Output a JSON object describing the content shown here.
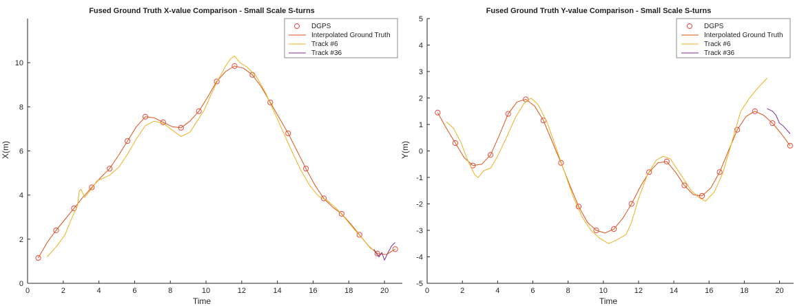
{
  "chart_data": [
    {
      "type": "line",
      "title": "Fused Ground Truth X-value Comparison - Small Scale S-turns",
      "xlabel": "Time",
      "ylabel": "X(m)",
      "xlim": [
        0,
        21
      ],
      "ylim": [
        0,
        12
      ],
      "xticks": [
        0,
        2,
        4,
        6,
        8,
        10,
        12,
        14,
        16,
        18,
        20
      ],
      "yticks": [
        0,
        2,
        4,
        6,
        8,
        10
      ],
      "grid": false,
      "legend_position": "top-right",
      "legend": [
        "DGPS",
        "Interpolated Ground Truth",
        "Track #6",
        "Track #36"
      ],
      "series": [
        {
          "name": "DGPS",
          "style": "markers",
          "color": "#e8473c",
          "x": [
            0.6,
            1.6,
            2.6,
            3.6,
            4.6,
            5.6,
            6.6,
            7.6,
            8.6,
            9.6,
            10.6,
            11.6,
            12.6,
            13.6,
            14.6,
            15.6,
            16.6,
            17.6,
            18.6,
            19.6,
            20.6
          ],
          "y": [
            1.15,
            2.4,
            3.4,
            4.35,
            5.2,
            6.45,
            7.55,
            7.3,
            7.05,
            7.8,
            9.15,
            9.85,
            9.45,
            8.2,
            6.8,
            5.2,
            3.85,
            3.15,
            2.2,
            1.35,
            1.55
          ]
        },
        {
          "name": "Interpolated Ground Truth",
          "style": "line",
          "color": "#d95319",
          "x": [
            0.6,
            1.1,
            1.6,
            2.1,
            2.6,
            3.1,
            3.6,
            4.1,
            4.6,
            5.1,
            5.6,
            6.1,
            6.6,
            7.1,
            7.6,
            8.1,
            8.6,
            9.1,
            9.6,
            10.1,
            10.6,
            11.1,
            11.6,
            12.1,
            12.6,
            13.1,
            13.6,
            14.1,
            14.6,
            15.1,
            15.6,
            16.1,
            16.6,
            17.1,
            17.6,
            18.1,
            18.6,
            19.1,
            19.6,
            20.1,
            20.6
          ],
          "y": [
            1.15,
            1.85,
            2.4,
            2.9,
            3.4,
            3.9,
            4.35,
            4.8,
            5.2,
            5.8,
            6.45,
            7.1,
            7.55,
            7.5,
            7.3,
            7.1,
            7.05,
            7.35,
            7.8,
            8.45,
            9.15,
            9.6,
            9.85,
            9.75,
            9.45,
            8.9,
            8.2,
            7.5,
            6.8,
            6.0,
            5.2,
            4.45,
            3.85,
            3.45,
            3.15,
            2.7,
            2.2,
            1.7,
            1.35,
            1.3,
            1.55
          ]
        },
        {
          "name": "Track #6",
          "style": "line",
          "color": "#edb120",
          "x": [
            1.1,
            1.6,
            2.1,
            2.5,
            2.8,
            2.9,
            3.0,
            3.2,
            3.6,
            3.9,
            4.2,
            4.6,
            5.1,
            5.6,
            6.1,
            6.6,
            7.1,
            7.6,
            8.1,
            8.6,
            9.1,
            9.5,
            9.9,
            10.2,
            10.6,
            11.1,
            11.4,
            11.6,
            11.9,
            12.3,
            12.8,
            13.3,
            13.8,
            14.3,
            14.8,
            15.3,
            15.8,
            16.3,
            16.8,
            17.3,
            17.8,
            18.3,
            18.8,
            19.2,
            19.6
          ],
          "y": [
            1.2,
            1.65,
            2.2,
            3.0,
            3.5,
            4.2,
            4.25,
            3.9,
            4.3,
            4.65,
            4.75,
            4.9,
            5.25,
            5.85,
            6.55,
            7.15,
            7.35,
            7.25,
            6.95,
            6.65,
            6.85,
            7.35,
            7.85,
            8.4,
            9.1,
            9.85,
            10.2,
            10.3,
            10.0,
            9.8,
            9.4,
            8.7,
            7.8,
            6.9,
            6.0,
            5.15,
            4.45,
            3.95,
            3.75,
            3.4,
            2.95,
            2.45,
            2.0,
            1.6,
            1.4
          ]
        },
        {
          "name": "Track #36",
          "style": "line",
          "color": "#7e2f8e",
          "x": [
            19.4,
            19.55,
            19.7,
            19.85,
            20.0,
            20.2,
            20.4,
            20.6
          ],
          "y": [
            1.55,
            1.35,
            1.2,
            1.4,
            1.05,
            1.4,
            1.7,
            1.85
          ]
        }
      ]
    },
    {
      "type": "line",
      "title": "Fused Ground Truth Y-value Comparison - Small Scale S-turns",
      "xlabel": "Time",
      "ylabel": "Y(m)",
      "xlim": [
        0,
        20.8
      ],
      "ylim": [
        -5,
        5
      ],
      "xticks": [
        0,
        2,
        4,
        6,
        8,
        10,
        12,
        14,
        16,
        18,
        20
      ],
      "yticks": [
        -5,
        -4,
        -3,
        -2,
        -1,
        0,
        1,
        2,
        3,
        4,
        5
      ],
      "grid": false,
      "legend_position": "top-right",
      "legend": [
        "DGPS",
        "Interpolated Ground Truth",
        "Track #6",
        "Track #36"
      ],
      "series": [
        {
          "name": "DGPS",
          "style": "markers",
          "color": "#e8473c",
          "x": [
            0.6,
            1.6,
            2.6,
            3.6,
            4.6,
            5.6,
            6.6,
            7.6,
            8.6,
            9.6,
            10.6,
            11.6,
            12.6,
            13.6,
            14.6,
            15.6,
            16.6,
            17.6,
            18.6,
            19.6,
            20.6
          ],
          "y": [
            1.45,
            0.3,
            -0.55,
            -0.15,
            1.4,
            1.95,
            1.15,
            -0.45,
            -2.1,
            -3.0,
            -2.95,
            -2.0,
            -0.8,
            -0.4,
            -1.3,
            -1.7,
            -0.8,
            0.8,
            1.5,
            1.05,
            0.2
          ]
        },
        {
          "name": "Interpolated Ground Truth",
          "style": "line",
          "color": "#d95319",
          "x": [
            0.6,
            1.1,
            1.6,
            2.1,
            2.6,
            3.1,
            3.6,
            4.1,
            4.6,
            5.1,
            5.6,
            6.1,
            6.6,
            7.1,
            7.6,
            8.1,
            8.6,
            9.1,
            9.6,
            10.1,
            10.6,
            11.1,
            11.6,
            12.1,
            12.6,
            13.1,
            13.6,
            14.1,
            14.6,
            15.1,
            15.6,
            16.1,
            16.6,
            17.1,
            17.6,
            18.1,
            18.6,
            19.1,
            19.6,
            20.1,
            20.6
          ],
          "y": [
            1.45,
            0.85,
            0.3,
            -0.25,
            -0.55,
            -0.5,
            -0.15,
            0.6,
            1.4,
            1.85,
            1.95,
            1.7,
            1.15,
            0.35,
            -0.45,
            -1.3,
            -2.1,
            -2.7,
            -3.0,
            -3.1,
            -2.95,
            -2.55,
            -2.0,
            -1.35,
            -0.8,
            -0.45,
            -0.4,
            -0.8,
            -1.3,
            -1.65,
            -1.7,
            -1.4,
            -0.8,
            0.0,
            0.8,
            1.3,
            1.5,
            1.35,
            1.05,
            0.65,
            0.2
          ]
        },
        {
          "name": "Track #6",
          "style": "line",
          "color": "#edb120",
          "x": [
            1.1,
            1.5,
            1.9,
            2.3,
            2.7,
            2.9,
            3.2,
            3.6,
            4.0,
            4.5,
            5.0,
            5.5,
            5.9,
            6.3,
            6.8,
            7.3,
            7.8,
            8.3,
            8.8,
            9.3,
            9.8,
            10.3,
            10.8,
            11.3,
            11.6,
            12.0,
            12.5,
            13.0,
            13.4,
            13.8,
            14.2,
            14.6,
            15.0,
            15.4,
            15.8,
            16.3,
            16.8,
            17.3,
            17.8,
            18.3,
            18.8,
            19.3
          ],
          "y": [
            1.1,
            0.85,
            0.35,
            -0.35,
            -0.9,
            -1.0,
            -0.75,
            -0.65,
            -0.2,
            0.5,
            1.25,
            1.8,
            2.0,
            1.75,
            1.1,
            0.15,
            -0.8,
            -1.75,
            -2.5,
            -3.0,
            -3.3,
            -3.5,
            -3.35,
            -3.15,
            -2.7,
            -1.8,
            -0.9,
            -0.35,
            -0.2,
            -0.3,
            -0.7,
            -1.1,
            -1.5,
            -1.75,
            -1.9,
            -1.55,
            -0.8,
            0.35,
            1.5,
            2.0,
            2.4,
            2.75
          ]
        },
        {
          "name": "Track #36",
          "style": "line",
          "color": "#7e2f8e",
          "x": [
            19.3,
            19.6,
            19.8,
            20.0,
            20.2,
            20.4,
            20.6
          ],
          "y": [
            1.6,
            1.5,
            1.35,
            1.05,
            0.95,
            0.8,
            0.65
          ]
        }
      ]
    }
  ]
}
